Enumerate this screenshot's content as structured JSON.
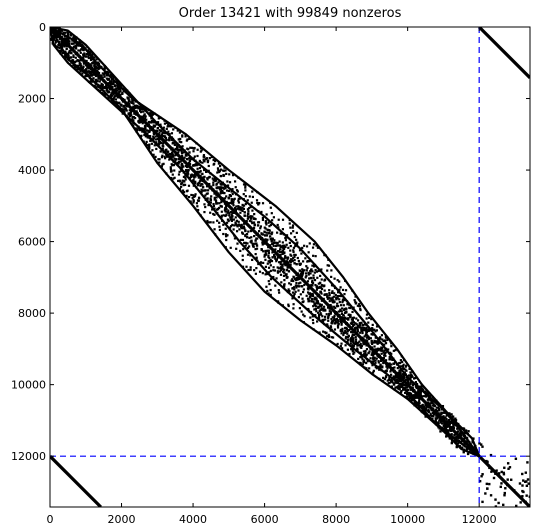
{
  "chart_data": {
    "type": "scatter",
    "title": "Order 13421 with 99849 nonzeros",
    "xlabel": "",
    "ylabel": "",
    "xlim": [
      0,
      13421
    ],
    "ylim": [
      13421,
      0
    ],
    "x_ticks": [
      0,
      2000,
      4000,
      6000,
      8000,
      10000,
      12000
    ],
    "y_ticks": [
      0,
      2000,
      4000,
      6000,
      8000,
      10000,
      12000
    ],
    "grid": false,
    "series": [
      {
        "pattern": "main diagonal and band",
        "x": [
          0,
          13421
        ],
        "y": [
          0,
          13421
        ]
      },
      {
        "pattern": "band upper envelope (column at row)",
        "y": [
          0,
          500,
          1000,
          2000,
          3000,
          4000,
          5000,
          6000,
          7000,
          8000,
          9000,
          10000,
          11000,
          11500,
          12000
        ],
        "x": [
          0,
          900,
          1300,
          2300,
          3800,
          5000,
          6300,
          7400,
          8200,
          8900,
          9700,
          10400,
          11300,
          11800,
          12000
        ]
      },
      {
        "pattern": "band lower envelope (column at row)",
        "y": [
          0,
          500,
          1000,
          2000,
          3000,
          4000,
          5000,
          6000,
          7000,
          8000,
          9000,
          10000,
          11000,
          11500,
          12000
        ],
        "x": [
          0,
          100,
          500,
          1600,
          2700,
          3700,
          4500,
          5300,
          6200,
          7300,
          8500,
          9800,
          10700,
          11300,
          12000
        ]
      },
      {
        "pattern": "off-diagonal corner block (top-right)",
        "x": [
          12000,
          13421
        ],
        "y": [
          0,
          1421
        ]
      },
      {
        "pattern": "off-diagonal corner block (bottom-left)",
        "x": [
          0,
          1421
        ],
        "y": [
          12000,
          13421
        ]
      }
    ],
    "reference_lines": [
      {
        "orientation": "vertical",
        "value": 12000,
        "style": "dashed",
        "color": "#0000ff"
      },
      {
        "orientation": "horizontal",
        "value": 12000,
        "style": "dashed",
        "color": "#0000ff"
      }
    ],
    "colors": {
      "marks": "#000000",
      "reference": "#0000ff"
    }
  }
}
